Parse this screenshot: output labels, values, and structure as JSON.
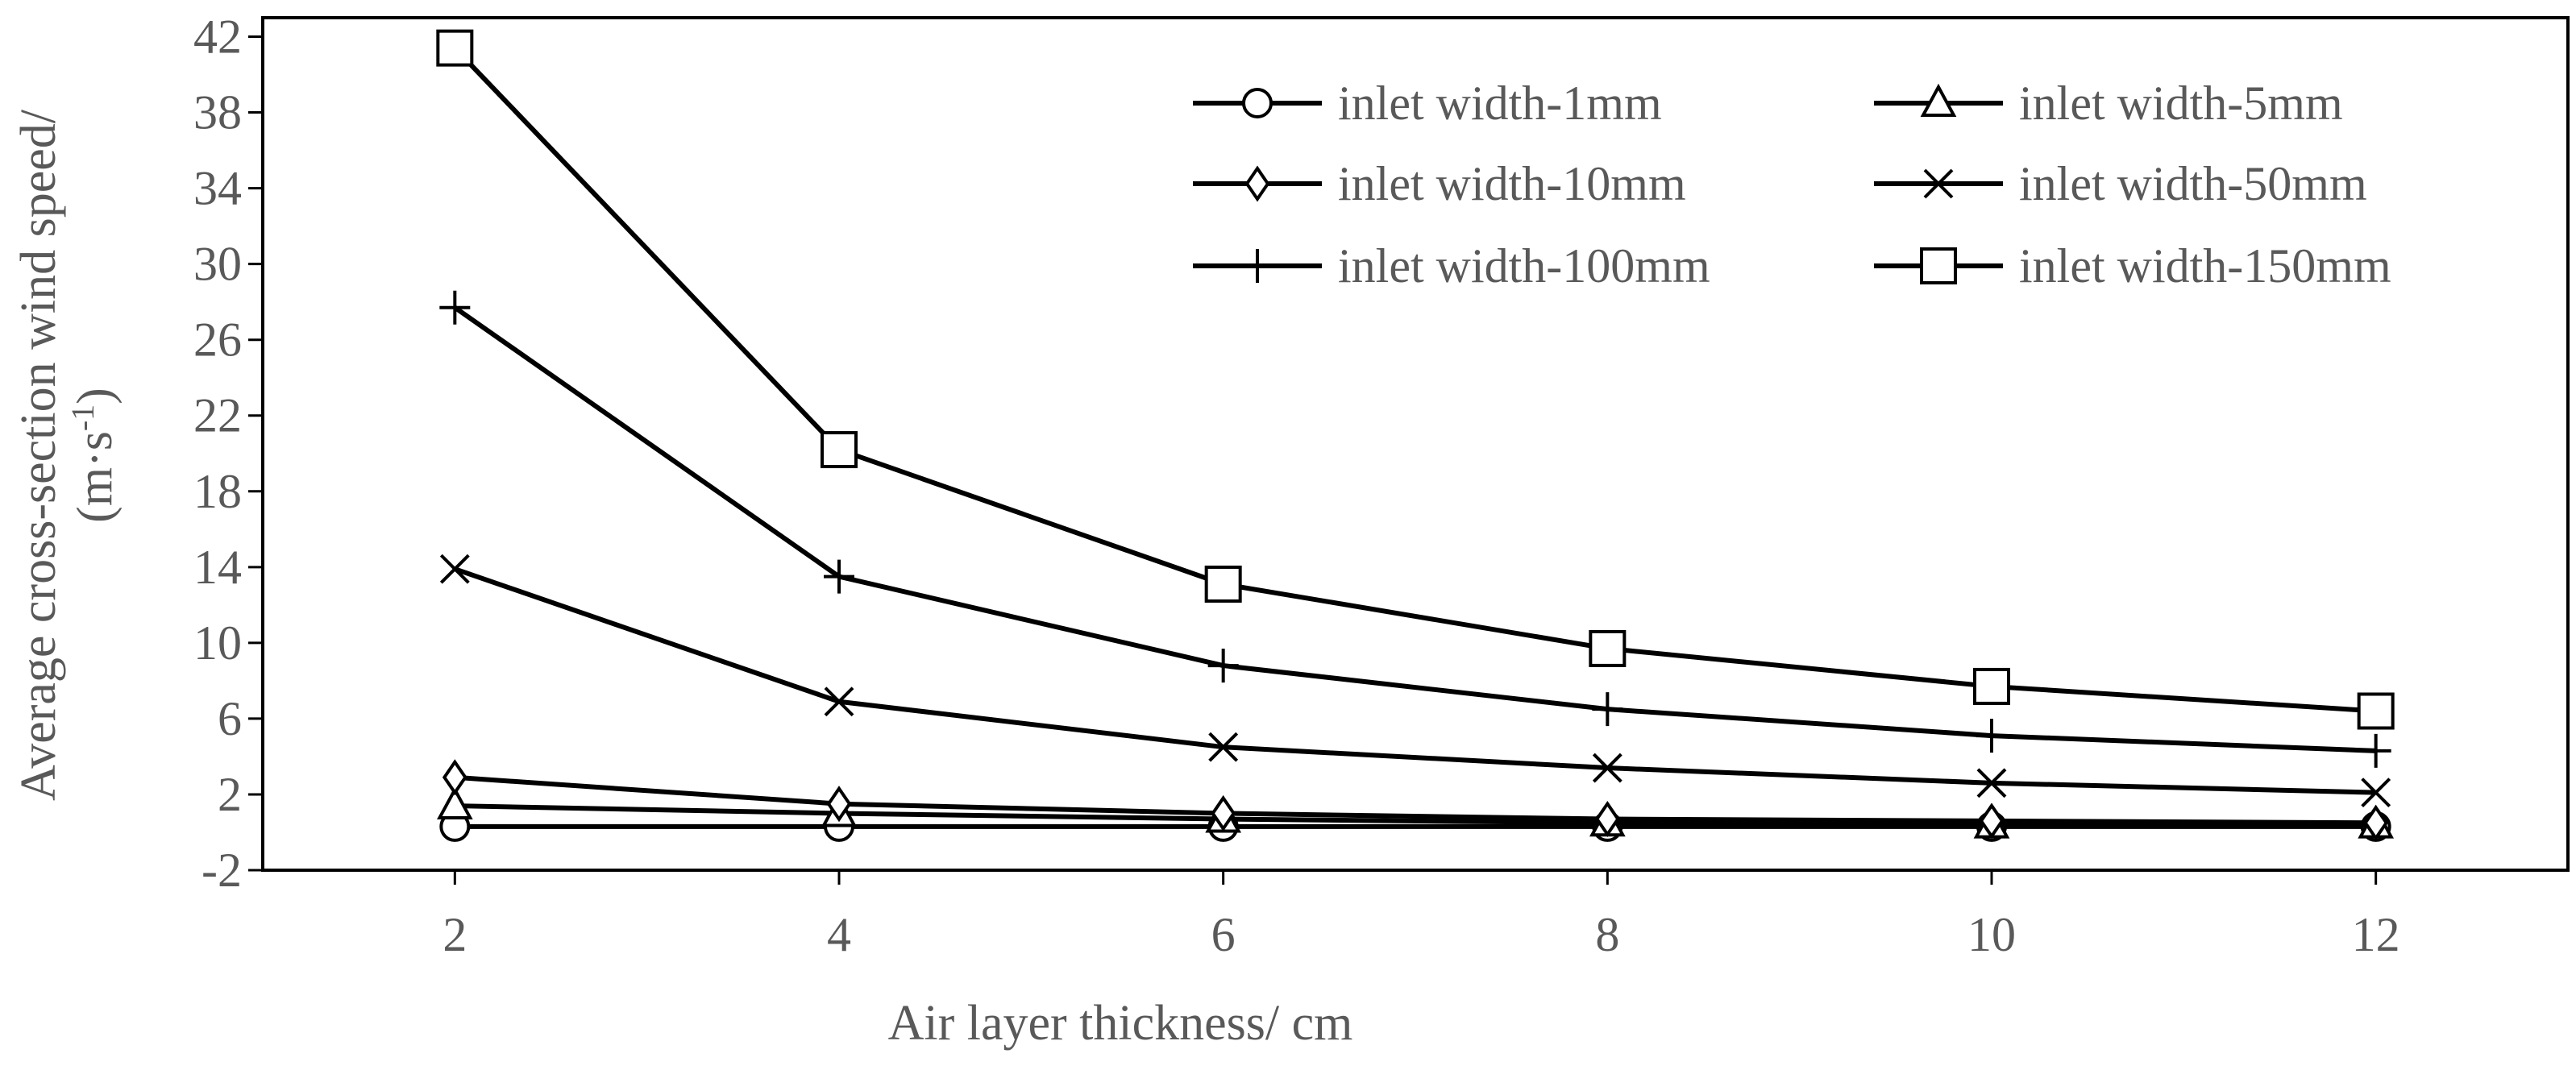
{
  "chart_data": {
    "type": "line",
    "x": [
      2,
      4,
      6,
      8,
      10,
      12
    ],
    "xticks": [
      "2",
      "4",
      "6",
      "8",
      "10",
      "12"
    ],
    "xlim": [
      1,
      13
    ],
    "ylim": [
      -2,
      43
    ],
    "yticks": [
      "-2",
      "2",
      "6",
      "10",
      "14",
      "18",
      "22",
      "26",
      "30",
      "34",
      "38",
      "42"
    ],
    "xlabel": "Air layer thickness/ cm",
    "ylabel_line1": "Average cross-section wind speed/",
    "ylabel_line2": "(m·s-1)",
    "grid": false,
    "legend_position": "top-right",
    "series": [
      {
        "name": "inlet width-1mm",
        "marker": "circle",
        "values": [
          0.3,
          0.3,
          0.3,
          0.3,
          0.3,
          0.3
        ]
      },
      {
        "name": "inlet width-5mm",
        "marker": "triangle",
        "values": [
          1.4,
          1.0,
          0.7,
          0.5,
          0.4,
          0.4
        ]
      },
      {
        "name": "inlet width-10mm",
        "marker": "diamond",
        "values": [
          2.9,
          1.5,
          1.0,
          0.7,
          0.6,
          0.5
        ]
      },
      {
        "name": "inlet width-50mm",
        "marker": "x",
        "values": [
          13.9,
          6.9,
          4.5,
          3.4,
          2.6,
          2.1
        ]
      },
      {
        "name": "inlet width-100mm",
        "marker": "plus",
        "values": [
          27.7,
          13.5,
          8.8,
          6.5,
          5.1,
          4.3
        ]
      },
      {
        "name": "inlet width-150mm",
        "marker": "square",
        "values": [
          41.4,
          20.2,
          13.1,
          9.7,
          7.7,
          6.4
        ]
      }
    ]
  }
}
